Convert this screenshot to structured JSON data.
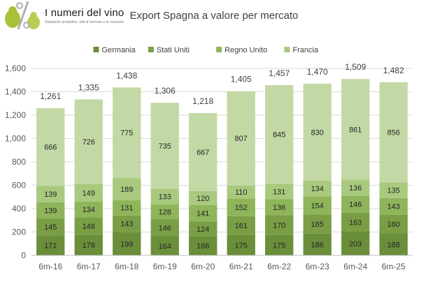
{
  "logo": {
    "name": "I numeri del vino",
    "tagline": "Statistiche produttive, dati di mercato e di consumo"
  },
  "chart_data": {
    "type": "bar",
    "stacked": true,
    "title": "Export Spagna a valore per mercato",
    "xlabel": "",
    "ylabel": "",
    "ylim": [
      0,
      1600
    ],
    "yticks": [
      0,
      200,
      400,
      600,
      800,
      1000,
      1200,
      1400,
      1600
    ],
    "ytick_labels": [
      "0",
      "200",
      "400",
      "600",
      "800",
      "1,000",
      "1,200",
      "1,400",
      "1,600"
    ],
    "legend_position": "top",
    "grid": true,
    "categories": [
      "6m-16",
      "6m-17",
      "6m-18",
      "6m-19",
      "6m-20",
      "6m-21",
      "6m-22",
      "6m-23",
      "6m-24",
      "6m-25"
    ],
    "series": [
      {
        "name": "Germania",
        "color": "#6b8e3a",
        "values": [
          171,
          178,
          199,
          164,
          166,
          175,
          175,
          186,
          203,
          188
        ]
      },
      {
        "name": "Stati Uniti",
        "color": "#7a9e45",
        "values": [
          145,
          148,
          143,
          146,
          124,
          161,
          170,
          165,
          163,
          160
        ]
      },
      {
        "name": "Regno Unito",
        "color": "#8fb55a",
        "values": [
          139,
          134,
          131,
          128,
          141,
          152,
          136,
          154,
          146,
          143
        ]
      },
      {
        "name": "Francia",
        "color": "#a9c97e",
        "values": [
          139,
          149,
          189,
          133,
          120,
          110,
          131,
          134,
          136,
          135
        ]
      },
      {
        "name": "",
        "color": "#c3d9a5",
        "values": [
          666,
          726,
          775,
          735,
          667,
          807,
          845,
          830,
          861,
          856
        ]
      }
    ],
    "totals": [
      1261,
      1335,
      1438,
      1306,
      1218,
      1405,
      1457,
      1470,
      1509,
      1482
    ],
    "total_labels": [
      "1,261",
      "1,335",
      "1,438",
      "1,306",
      "1,218",
      "1,405",
      "1,457",
      "1,470",
      "1,509",
      "1,482"
    ]
  }
}
